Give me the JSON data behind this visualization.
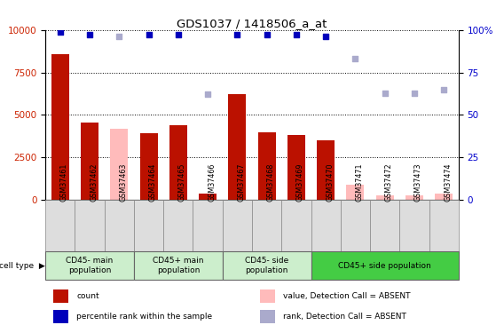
{
  "title": "GDS1037 / 1418506_a_at",
  "samples": [
    "GSM37461",
    "GSM37462",
    "GSM37463",
    "GSM37464",
    "GSM37465",
    "GSM37466",
    "GSM37467",
    "GSM37468",
    "GSM37469",
    "GSM37470",
    "GSM37471",
    "GSM37472",
    "GSM37473",
    "GSM37474"
  ],
  "count_values": [
    8600,
    4550,
    null,
    3900,
    4400,
    350,
    6200,
    4000,
    3800,
    3500,
    null,
    null,
    null,
    null
  ],
  "count_absent": [
    null,
    null,
    4200,
    null,
    null,
    null,
    null,
    null,
    null,
    null,
    900,
    250,
    250,
    350
  ],
  "rank_values": [
    99,
    97,
    null,
    97,
    97,
    null,
    97,
    97,
    97,
    96,
    null,
    null,
    null,
    null
  ],
  "rank_absent": [
    null,
    null,
    96,
    null,
    null,
    62,
    null,
    null,
    null,
    null,
    83,
    63,
    63,
    65
  ],
  "bar_color_present": "#bb1100",
  "bar_color_absent": "#ffbbbb",
  "dot_color_present": "#0000bb",
  "dot_color_absent": "#aaaacc",
  "ylim_left": [
    0,
    10000
  ],
  "ylim_right": [
    0,
    100
  ],
  "yticks_left": [
    0,
    2500,
    5000,
    7500,
    10000
  ],
  "yticks_right": [
    0,
    25,
    50,
    75,
    100
  ],
  "group_boundaries": [
    {
      "start": 0,
      "end": 3,
      "label": "CD45- main\npopulation",
      "color": "#cceecc"
    },
    {
      "start": 3,
      "end": 6,
      "label": "CD45+ main\npopulation",
      "color": "#cceecc"
    },
    {
      "start": 6,
      "end": 9,
      "label": "CD45- side\npopulation",
      "color": "#cceecc"
    },
    {
      "start": 9,
      "end": 14,
      "label": "CD45+ side population",
      "color": "#44cc44"
    }
  ],
  "legend_items": [
    {
      "label": "count",
      "color": "#bb1100"
    },
    {
      "label": "percentile rank within the sample",
      "color": "#0000bb"
    },
    {
      "label": "value, Detection Call = ABSENT",
      "color": "#ffbbbb"
    },
    {
      "label": "rank, Detection Call = ABSENT",
      "color": "#aaaacc"
    }
  ]
}
